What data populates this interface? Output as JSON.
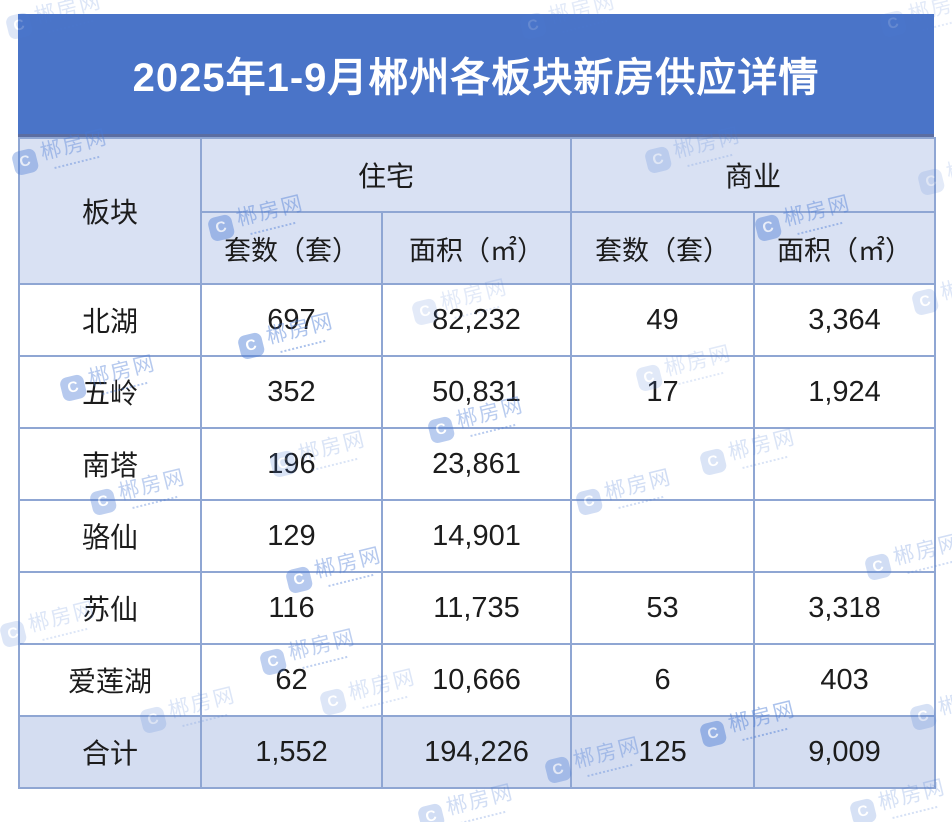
{
  "title": "2025年1-9月郴州各板块新房供应详情",
  "table": {
    "corner_header": "板块",
    "groups": {
      "residential": "住宅",
      "commercial": "商业"
    },
    "sub_headers": {
      "resi_units": "套数（套）",
      "resi_area": "面积（㎡）",
      "comm_units": "套数（套）",
      "comm_area": "面积（㎡）"
    },
    "rows": [
      {
        "district": "北湖",
        "resi_units": "697",
        "resi_area": "82,232",
        "comm_units": "49",
        "comm_area": "3,364"
      },
      {
        "district": "五岭",
        "resi_units": "352",
        "resi_area": "50,831",
        "comm_units": "17",
        "comm_area": "1,924"
      },
      {
        "district": "南塔",
        "resi_units": "196",
        "resi_area": "23,861",
        "comm_units": "",
        "comm_area": ""
      },
      {
        "district": "骆仙",
        "resi_units": "129",
        "resi_area": "14,901",
        "comm_units": "",
        "comm_area": ""
      },
      {
        "district": "苏仙",
        "resi_units": "116",
        "resi_area": "11,735",
        "comm_units": "53",
        "comm_area": "3,318"
      },
      {
        "district": "爱莲湖",
        "resi_units": "62",
        "resi_area": "10,666",
        "comm_units": "6",
        "comm_area": "403"
      }
    ],
    "total_row": {
      "district": "合计",
      "resi_units": "1,552",
      "resi_area": "194,226",
      "comm_units": "125",
      "comm_area": "9,009"
    }
  },
  "watermark": {
    "text": "郴房网",
    "icon_label": "C"
  },
  "colors": {
    "title_bar": "#4a74c8",
    "header_fill": "#d9e1f3",
    "total_fill": "#d4ddf1",
    "border": "#8fa6d3",
    "watermark_blue": "#4a7bd6"
  },
  "chart_data": {
    "type": "table",
    "title": "2025年1-9月郴州各板块新房供应详情",
    "column_groups": [
      {
        "label": "板块",
        "colspan": 1
      },
      {
        "label": "住宅",
        "colspan": 2
      },
      {
        "label": "商业",
        "colspan": 2
      }
    ],
    "columns": [
      "板块",
      "住宅 套数（套）",
      "住宅 面积（㎡）",
      "商业 套数（套）",
      "商业 面积（㎡）"
    ],
    "rows": [
      [
        "北湖",
        697,
        82232,
        49,
        3364
      ],
      [
        "五岭",
        352,
        50831,
        17,
        1924
      ],
      [
        "南塔",
        196,
        23861,
        null,
        null
      ],
      [
        "骆仙",
        129,
        14901,
        null,
        null
      ],
      [
        "苏仙",
        116,
        11735,
        53,
        3318
      ],
      [
        "爱莲湖",
        62,
        10666,
        6,
        403
      ],
      [
        "合计",
        1552,
        194226,
        125,
        9009
      ]
    ]
  }
}
